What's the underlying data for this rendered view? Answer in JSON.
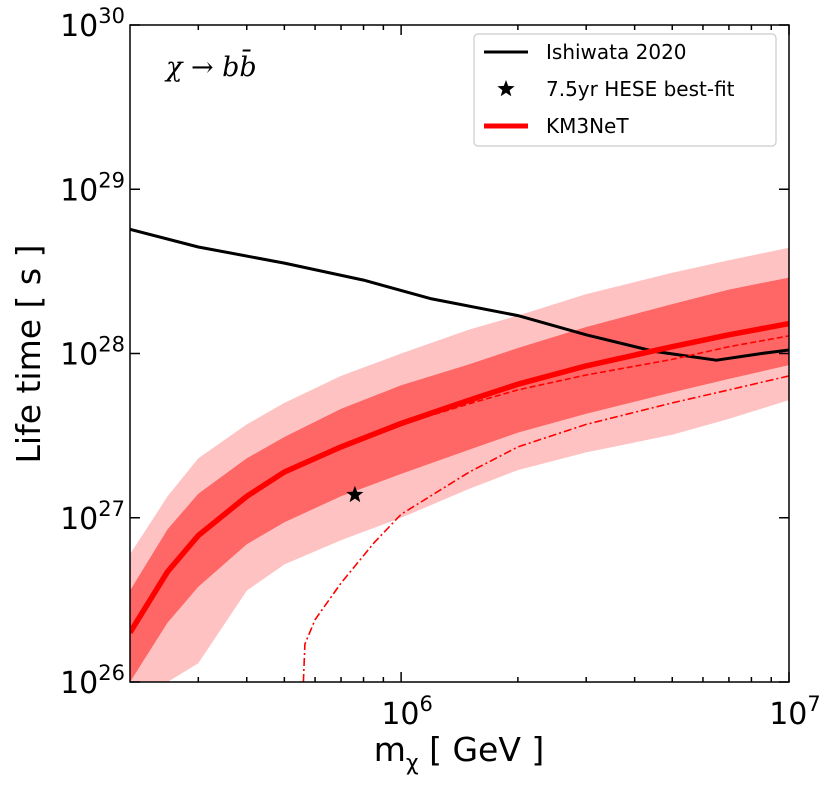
{
  "chart_data": {
    "type": "line",
    "title": "",
    "annotation": "χ → bb̄",
    "xlabel": "m_χ [ GeV ]",
    "xlabel_parts": {
      "base": "m",
      "sub": "χ",
      "rest": " [ GeV ]"
    },
    "ylabel": "Life time [ s ]",
    "x_scale": "log",
    "y_scale": "log",
    "xlim": [
      200000,
      10000000
    ],
    "ylim": [
      1e+26,
      1e+30
    ],
    "x_ticks": [
      {
        "value": 1000000,
        "base": "10",
        "exp": "6"
      },
      {
        "value": 10000000,
        "base": "10",
        "exp": "7"
      }
    ],
    "y_ticks": [
      {
        "value": 1e+26,
        "base": "10",
        "exp": "26"
      },
      {
        "value": 1e+27,
        "base": "10",
        "exp": "27"
      },
      {
        "value": 1e+28,
        "base": "10",
        "exp": "28"
      },
      {
        "value": 1e+29,
        "base": "10",
        "exp": "29"
      },
      {
        "value": 1e+30,
        "base": "10",
        "exp": "30"
      }
    ],
    "grid": false,
    "legend_position": "top-right",
    "legend": [
      {
        "label": "Ishiwata 2020",
        "style": "line",
        "color": "#000000"
      },
      {
        "label": "7.5yr HESE best-fit",
        "style": "star",
        "color": "#000000"
      },
      {
        "label": "KM3NeT",
        "style": "thick-line",
        "color": "#ff0000"
      }
    ],
    "series": [
      {
        "name": "Ishiwata 2020",
        "kind": "line",
        "color": "#000000",
        "x": [
          200000,
          300000,
          500000,
          800000,
          1200000,
          2000000,
          3000000,
          4500000,
          6500000,
          8500000,
          10000000
        ],
        "y": [
          5.7e+28,
          4.45e+28,
          3.55e+28,
          2.8e+28,
          2.15e+28,
          1.7e+28,
          1.3e+28,
          1.03e+28,
          9.1e+27,
          1e+28,
          1.05e+28
        ]
      },
      {
        "name": "KM3NeT",
        "kind": "thick-line",
        "color": "#ff0000",
        "x": [
          200000,
          250000,
          300000,
          400000,
          500000,
          700000,
          1000000,
          1500000,
          2000000,
          3000000,
          5000000,
          7000000,
          10000000
        ],
        "y": [
          2e+26,
          4.7e+26,
          7.8e+26,
          1.35e+27,
          1.9e+27,
          2.7e+27,
          3.75e+27,
          5.2e+27,
          6.5e+27,
          8.4e+27,
          1.1e+28,
          1.3e+28,
          1.52e+28
        ]
      },
      {
        "kind": "dashed-line",
        "color": "#ff0000",
        "x": [
          700000,
          1000000,
          1500000,
          2000000,
          3000000,
          5000000,
          7000000,
          10000000
        ],
        "y": [
          2.7e+27,
          3.7e+27,
          4.95e+27,
          6e+27,
          7.4e+27,
          9.2e+27,
          1.1e+28,
          1.28e+28
        ]
      },
      {
        "kind": "dashdot-line",
        "color": "#ff0000",
        "x": [
          560000,
          565000,
          600000,
          700000,
          850000,
          1000000,
          1500000,
          2000000,
          3000000,
          5000000,
          7000000,
          10000000
        ],
        "y": [
          1e+26,
          1.7e+26,
          2.4e+26,
          4e+26,
          7e+26,
          1.05e+27,
          1.9e+27,
          2.7e+27,
          3.7e+27,
          5e+27,
          6e+27,
          7.3e+27
        ]
      },
      {
        "kind": "band",
        "color": "#ffc2c2",
        "x": [
          200000,
          250000,
          300000,
          400000,
          500000,
          700000,
          1000000,
          1500000,
          2000000,
          3000000,
          5000000,
          7000000,
          10000000
        ],
        "upper": [
          6e+26,
          1.35e+27,
          2.3e+27,
          3.7e+27,
          5e+27,
          7.3e+27,
          1e+28,
          1.4e+28,
          1.7e+28,
          2.3e+28,
          3.1e+28,
          3.7e+28,
          4.4e+28
        ],
        "lower": [
          1e+26,
          1e+26,
          1.3e+26,
          3.6e+26,
          5.2e+26,
          7.3e+26,
          1e+27,
          1.5e+27,
          1.95e+27,
          2.5e+27,
          3.2e+27,
          4e+27,
          5.2e+27
        ]
      },
      {
        "kind": "band",
        "color": "#ff6666",
        "x": [
          200000,
          250000,
          300000,
          400000,
          500000,
          700000,
          1000000,
          1500000,
          2000000,
          3000000,
          5000000,
          7000000,
          10000000
        ],
        "upper": [
          3.6e+26,
          8.5e+26,
          1.4e+27,
          2.3e+27,
          3.1e+27,
          4.6e+27,
          6.4e+27,
          8.6e+27,
          1.08e+28,
          1.45e+28,
          2e+28,
          2.45e+28,
          2.9e+28
        ],
        "lower": [
          1e+26,
          2.3e+26,
          3.8e+26,
          6.9e+26,
          9.4e+26,
          1.35e+27,
          1.85e+27,
          2.6e+27,
          3.3e+27,
          4.3e+27,
          5.8e+27,
          7e+27,
          8.5e+27
        ]
      },
      {
        "name": "7.5yr HESE best-fit",
        "kind": "star",
        "color": "#000000",
        "x": [
          760000
        ],
        "y": [
          1.38e+27
        ]
      }
    ]
  }
}
